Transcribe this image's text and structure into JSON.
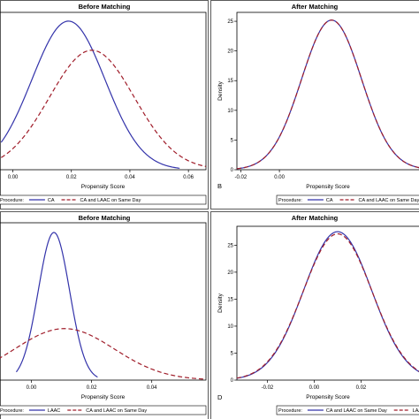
{
  "chart_data": [
    {
      "type": "line",
      "panel_letter": "",
      "title": "Before Matching",
      "xlabel": "Propensity Score",
      "ylabel": "",
      "xlim": [
        -0.005,
        0.066
      ],
      "ylim": [
        0,
        27
      ],
      "x_ticks": [
        0.0,
        0.02,
        0.04,
        0.06
      ],
      "x_tick_labels": [
        "0.00",
        "0.02",
        "0.04",
        "0.06"
      ],
      "y_ticks": [],
      "y_tick_labels": [],
      "legend_title": "Procedure:",
      "legend_position": "bottom",
      "series": [
        {
          "name": "CA",
          "color": "#3333aa",
          "dash": "solid",
          "mean": 0.019,
          "sd": 0.0125,
          "peak": 25.5,
          "x_range": [
            -0.004,
            0.057
          ]
        },
        {
          "name": "CA and LAAC on Same Day",
          "color": "#a01d2a",
          "dash": "dashed",
          "mean": 0.027,
          "sd": 0.0145,
          "peak": 20.5,
          "x_range": [
            -0.004,
            0.066
          ]
        }
      ]
    },
    {
      "type": "line",
      "panel_letter": "B",
      "title": "After Matching",
      "xlabel": "Propensity Score",
      "ylabel": "Density",
      "xlim": [
        -0.022,
        0.075
      ],
      "ylim": [
        0,
        26.5
      ],
      "x_ticks": [
        -0.02,
        0.0
      ],
      "x_tick_labels": [
        "-0.02",
        "0.00"
      ],
      "y_ticks": [
        0,
        5,
        10,
        15,
        20,
        25
      ],
      "y_tick_labels": [
        "0",
        "5",
        "10",
        "15",
        "20",
        "25"
      ],
      "legend_title": "Procedure:",
      "legend_position": "bottom",
      "series": [
        {
          "name": "CA",
          "color": "#3333aa",
          "dash": "solid",
          "mean": 0.027,
          "sd": 0.0155,
          "peak": 25.2,
          "x_range": [
            -0.022,
            0.075
          ]
        },
        {
          "name": "CA and LAAC on Same Day",
          "color": "#a01d2a",
          "dash": "dashed",
          "mean": 0.027,
          "sd": 0.0155,
          "peak": 25.2,
          "x_range": [
            -0.022,
            0.075
          ]
        }
      ]
    },
    {
      "type": "line",
      "panel_letter": "",
      "title": "Before Matching",
      "xlabel": "Propensity Score",
      "ylabel": "",
      "xlim": [
        -0.011,
        0.058
      ],
      "ylim": [
        0,
        27.5
      ],
      "x_ticks": [
        0.0,
        0.02,
        0.04
      ],
      "x_tick_labels": [
        "0.00",
        "0.02",
        "0.04"
      ],
      "y_ticks": [],
      "y_tick_labels": [],
      "legend_title": "Procedure:",
      "legend_position": "bottom",
      "series": [
        {
          "name": "LAAC",
          "color": "#3333aa",
          "dash": "solid",
          "mean": 0.0075,
          "sd": 0.0052,
          "peak": 25.8,
          "x_range": [
            -0.005,
            0.022
          ]
        },
        {
          "name": "CA and LAAC on Same Day",
          "color": "#a01d2a",
          "dash": "dashed",
          "mean": 0.011,
          "sd": 0.0165,
          "peak": 9.0,
          "x_range": [
            -0.011,
            0.058
          ]
        }
      ]
    },
    {
      "type": "line",
      "panel_letter": "D",
      "title": "After Matching",
      "xlabel": "Propensity Score",
      "ylabel": "Density",
      "xlim": [
        -0.033,
        0.047
      ],
      "ylim": [
        0,
        28.5
      ],
      "x_ticks": [
        -0.02,
        0.0,
        0.02
      ],
      "x_tick_labels": [
        "-0.02",
        "0.00",
        "0.02"
      ],
      "y_ticks": [
        0,
        5,
        10,
        15,
        20,
        25
      ],
      "y_tick_labels": [
        "0",
        "5",
        "10",
        "15",
        "20",
        "25"
      ],
      "legend_title": "Procedure:",
      "legend_position": "bottom",
      "series": [
        {
          "name": "CA and LAAC on Same Day",
          "color": "#3333aa",
          "dash": "solid",
          "mean": 0.01,
          "sd": 0.0145,
          "peak": 27.5,
          "x_range": [
            -0.033,
            0.047
          ]
        },
        {
          "name": "LAAC",
          "color": "#a01d2a",
          "dash": "dashed",
          "mean": 0.01,
          "sd": 0.0147,
          "peak": 27.1,
          "x_range": [
            -0.033,
            0.047
          ]
        }
      ]
    }
  ]
}
